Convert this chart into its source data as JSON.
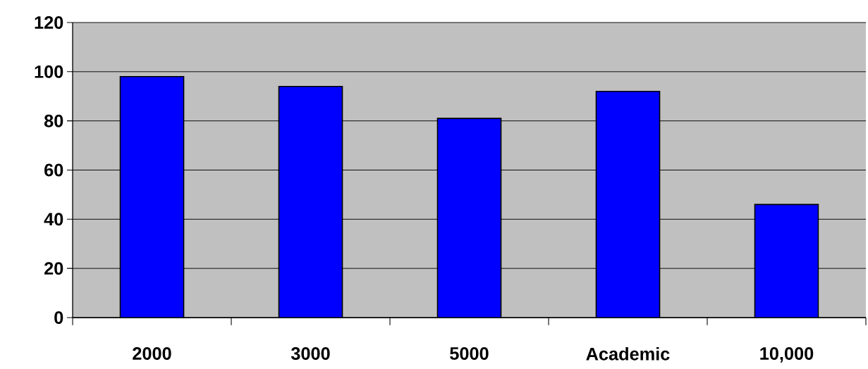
{
  "chart_data": {
    "type": "bar",
    "categories": [
      "2000",
      "3000",
      "5000",
      "Academic",
      "10,000"
    ],
    "values": [
      98,
      94,
      81,
      92,
      46
    ],
    "color": "#0000ff",
    "ylim": [
      0,
      120
    ],
    "yticks": [
      0,
      20,
      40,
      60,
      80,
      100,
      120
    ],
    "grid": "y"
  }
}
